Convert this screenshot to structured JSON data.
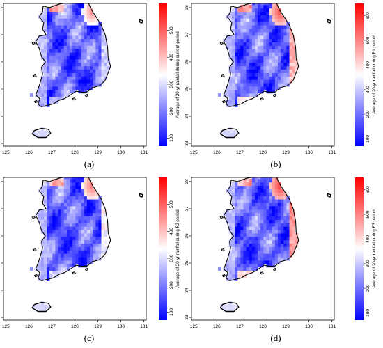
{
  "panels": [
    {
      "id": "a",
      "label": "(a)",
      "legend_title": "Average of 20-yr rainfall during current period",
      "cb_ticks": [
        100,
        200,
        300,
        400,
        500
      ],
      "seed": 3,
      "red_boost": 0.0
    },
    {
      "id": "b",
      "label": "(b)",
      "legend_title": "Average of 20-yr rainfall during F1 period",
      "cb_ticks": [
        100,
        200,
        300,
        400,
        500,
        600
      ],
      "seed": 11,
      "red_boost": 0.12
    },
    {
      "id": "c",
      "label": "(c)",
      "legend_title": "Average of 20-yr rainfall during F2 period",
      "cb_ticks": [
        100,
        200,
        300,
        400,
        500
      ],
      "seed": 23,
      "red_boost": 0.05
    },
    {
      "id": "d",
      "label": "(d)",
      "legend_title": "Average of 20-yr rainfall during F3 period",
      "cb_ticks": [
        100,
        200,
        300,
        400,
        500,
        600
      ],
      "seed": 37,
      "red_boost": 0.15
    }
  ],
  "axes": {
    "x_ticks": [
      125,
      126,
      127,
      128,
      129,
      130,
      131
    ],
    "y_ticks": [
      33,
      34,
      35,
      36,
      37,
      38
    ],
    "xlim": [
      124.9,
      131.1
    ],
    "ylim": [
      32.9,
      38.15
    ]
  },
  "colors": {
    "low": "#0000ff",
    "mid": "#ffffff",
    "high": "#ff0000",
    "outline": "#000000"
  }
}
